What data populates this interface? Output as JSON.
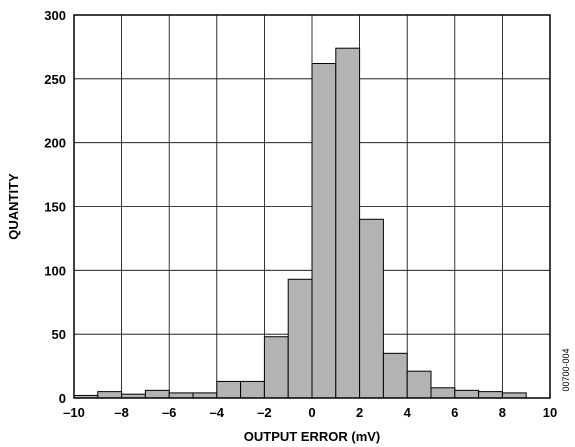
{
  "chart_data": {
    "type": "bar",
    "xlabel": "OUTPUT ERROR (mV)",
    "ylabel": "QUANTITY",
    "xlim": [
      -10,
      10
    ],
    "ylim": [
      0,
      300
    ],
    "xticks": [
      -10,
      -8,
      -6,
      -4,
      -2,
      0,
      2,
      4,
      6,
      8,
      10
    ],
    "yticks": [
      0,
      50,
      100,
      150,
      200,
      250,
      300
    ],
    "grid": true,
    "bin_width": 1,
    "bins": [
      {
        "x": -10,
        "value": 2
      },
      {
        "x": -9,
        "value": 5
      },
      {
        "x": -8,
        "value": 3
      },
      {
        "x": -7,
        "value": 6
      },
      {
        "x": -6,
        "value": 4
      },
      {
        "x": -5,
        "value": 4
      },
      {
        "x": -4,
        "value": 13
      },
      {
        "x": -3,
        "value": 13
      },
      {
        "x": -2,
        "value": 48
      },
      {
        "x": -1,
        "value": 93
      },
      {
        "x": 0,
        "value": 262
      },
      {
        "x": 1,
        "value": 274
      },
      {
        "x": 2,
        "value": 140
      },
      {
        "x": 3,
        "value": 35
      },
      {
        "x": 4,
        "value": 21
      },
      {
        "x": 5,
        "value": 8
      },
      {
        "x": 6,
        "value": 6
      },
      {
        "x": 7,
        "value": 5
      },
      {
        "x": 8,
        "value": 4
      }
    ],
    "bar_color": "#b3b3b3",
    "side_note": "00700-004"
  }
}
